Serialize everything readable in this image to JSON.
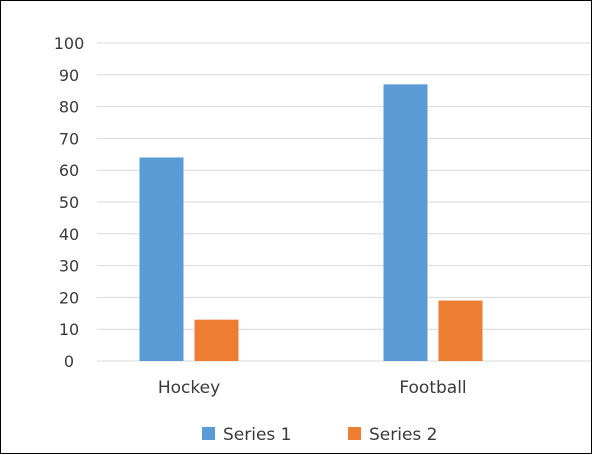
{
  "chart_data": {
    "type": "bar",
    "categories": [
      "Hockey",
      "Football"
    ],
    "series": [
      {
        "name": "Series 1",
        "values": [
          64,
          87
        ],
        "color": "#5b9bd5"
      },
      {
        "name": "Series 2",
        "values": [
          13,
          19
        ],
        "color": "#ed7d31"
      }
    ],
    "yticks": [
      "0",
      "10",
      "20",
      "30",
      "40",
      "50",
      "60",
      "70",
      "80",
      "90",
      "100"
    ],
    "ylim": [
      0,
      100
    ],
    "title": "",
    "xlabel": "",
    "ylabel": "",
    "grid": true,
    "legend_position": "bottom",
    "gridline_color": "#d9d9d9"
  }
}
